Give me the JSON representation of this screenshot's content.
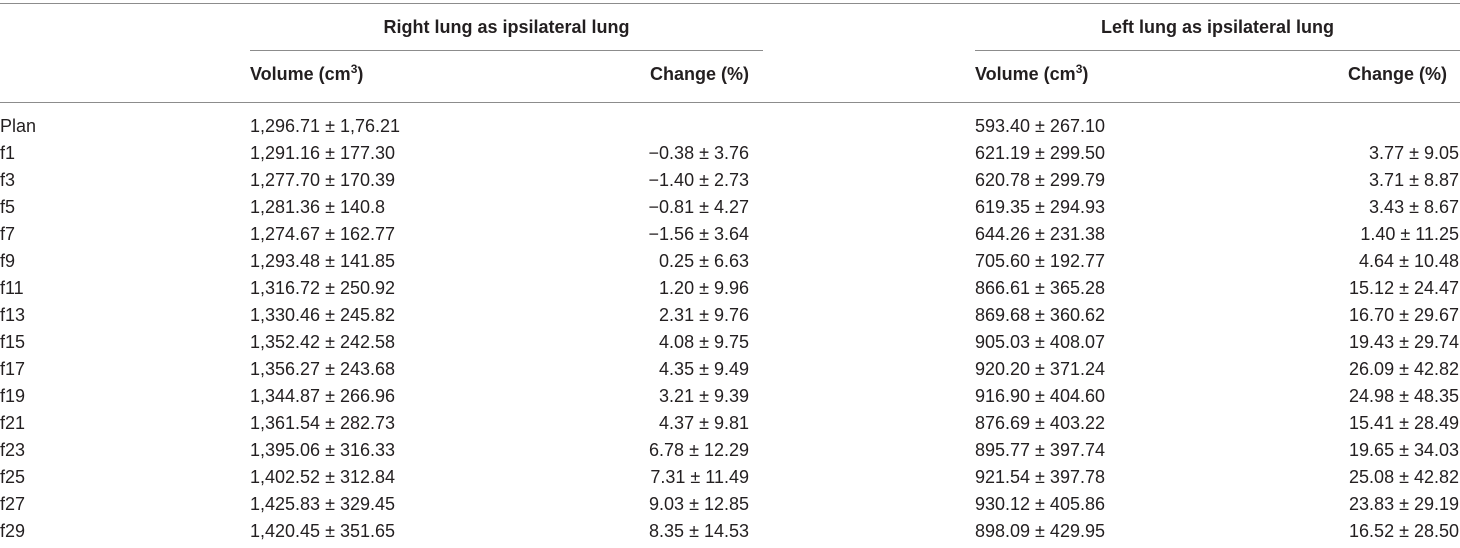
{
  "table": {
    "group_right": "Right lung as ipsilateral lung",
    "group_left": "Left lung as ipsilateral lung",
    "col_volume": "Volume (cm",
    "col_volume_sup": "3",
    "col_volume_close": ")",
    "col_change": "Change (%)",
    "rows": [
      {
        "label": "Plan",
        "rv": "1,296.71 ± 1,76.21",
        "rc": "",
        "lv": "593.40 ± 267.10",
        "lc": ""
      },
      {
        "label": "f1",
        "rv": "1,291.16 ± 177.30",
        "rc": "−0.38 ± 3.76",
        "lv": "621.19 ± 299.50",
        "lc": "3.77 ± 9.05"
      },
      {
        "label": "f3",
        "rv": "1,277.70 ± 170.39",
        "rc": "−1.40 ± 2.73",
        "lv": "620.78 ± 299.79",
        "lc": "3.71 ± 8.87"
      },
      {
        "label": "f5",
        "rv": "1,281.36 ± 140.8",
        "rc": "−0.81 ± 4.27",
        "lv": "619.35 ± 294.93",
        "lc": "3.43 ± 8.67"
      },
      {
        "label": "f7",
        "rv": "1,274.67 ± 162.77",
        "rc": "−1.56 ± 3.64",
        "lv": "644.26 ± 231.38",
        "lc": "1.40 ± 11.25"
      },
      {
        "label": "f9",
        "rv": "1,293.48 ± 141.85",
        "rc": "0.25 ± 6.63",
        "lv": "705.60 ± 192.77",
        "lc": "4.64 ± 10.48"
      },
      {
        "label": "f11",
        "rv": "1,316.72 ± 250.92",
        "rc": "1.20 ± 9.96",
        "lv": "866.61 ± 365.28",
        "lc": "15.12 ± 24.47"
      },
      {
        "label": "f13",
        "rv": "1,330.46 ± 245.82",
        "rc": "2.31 ± 9.76",
        "lv": "869.68 ± 360.62",
        "lc": "16.70 ± 29.67"
      },
      {
        "label": "f15",
        "rv": "1,352.42 ± 242.58",
        "rc": "4.08 ± 9.75",
        "lv": "905.03 ± 408.07",
        "lc": "19.43 ± 29.74"
      },
      {
        "label": "f17",
        "rv": "1,356.27 ± 243.68",
        "rc": "4.35 ± 9.49",
        "lv": "920.20 ± 371.24",
        "lc": "26.09 ± 42.82"
      },
      {
        "label": "f19",
        "rv": "1,344.87 ± 266.96",
        "rc": "3.21 ± 9.39",
        "lv": "916.90 ± 404.60",
        "lc": "24.98 ± 48.35"
      },
      {
        "label": "f21",
        "rv": "1,361.54 ± 282.73",
        "rc": "4.37 ± 9.81",
        "lv": "876.69 ± 403.22",
        "lc": "15.41 ± 28.49"
      },
      {
        "label": "f23",
        "rv": "1,395.06 ± 316.33",
        "rc": "6.78 ± 12.29",
        "lv": "895.77 ± 397.74",
        "lc": "19.65 ± 34.03"
      },
      {
        "label": "f25",
        "rv": "1,402.52 ± 312.84",
        "rc": "7.31 ± 11.49",
        "lv": "921.54 ± 397.78",
        "lc": "25.08 ± 42.82"
      },
      {
        "label": "f27",
        "rv": "1,425.83 ± 329.45",
        "rc": "9.03 ± 12.85",
        "lv": "930.12 ± 405.86",
        "lc": "23.83 ± 29.19"
      },
      {
        "label": "f29",
        "rv": "1,420.45 ± 351.65",
        "rc": "8.35 ± 14.53",
        "lv": "898.09 ± 429.95",
        "lc": "16.52 ± 28.50"
      }
    ]
  }
}
